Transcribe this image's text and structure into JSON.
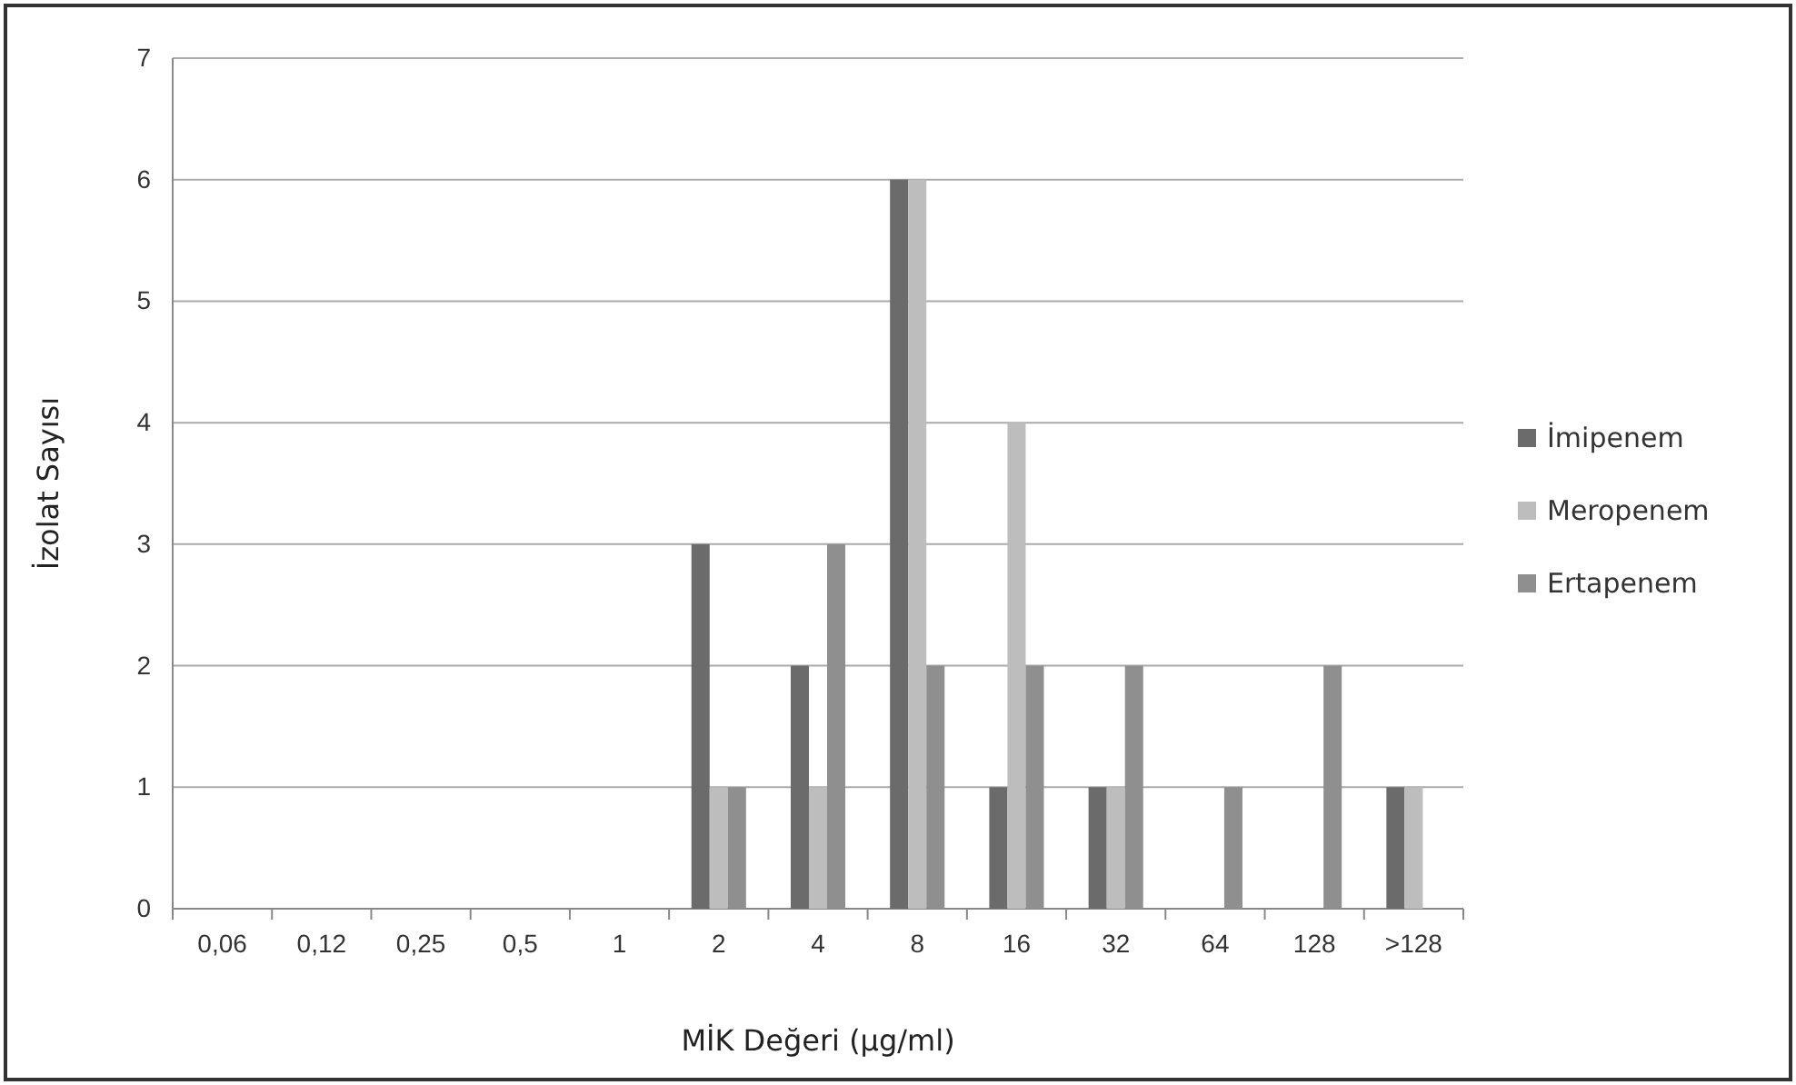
{
  "chart_data": {
    "type": "bar",
    "xlabel": "MİK Değeri (µg/ml)",
    "ylabel": "İzolat Sayısı",
    "categories": [
      "0,06",
      "0,12",
      "0,25",
      "0,5",
      "1",
      "2",
      "4",
      "8",
      "16",
      "32",
      "64",
      "128",
      ">128"
    ],
    "series": [
      {
        "name": "İmipenem",
        "color": "#6b6b6b",
        "values": [
          0,
          0,
          0,
          0,
          0,
          3,
          2,
          6,
          1,
          1,
          0,
          0,
          1
        ]
      },
      {
        "name": "Meropenem",
        "color": "#bdbdbd",
        "values": [
          0,
          0,
          0,
          0,
          0,
          1,
          1,
          6,
          4,
          1,
          0,
          0,
          1
        ]
      },
      {
        "name": "Ertapenem",
        "color": "#8f8f8f",
        "values": [
          0,
          0,
          0,
          0,
          0,
          1,
          3,
          2,
          2,
          2,
          1,
          2,
          0
        ]
      }
    ],
    "ylim": [
      0,
      7
    ],
    "yticks": [
      0,
      1,
      2,
      3,
      4,
      5,
      6,
      7
    ],
    "grid": "y",
    "legend": "right"
  }
}
